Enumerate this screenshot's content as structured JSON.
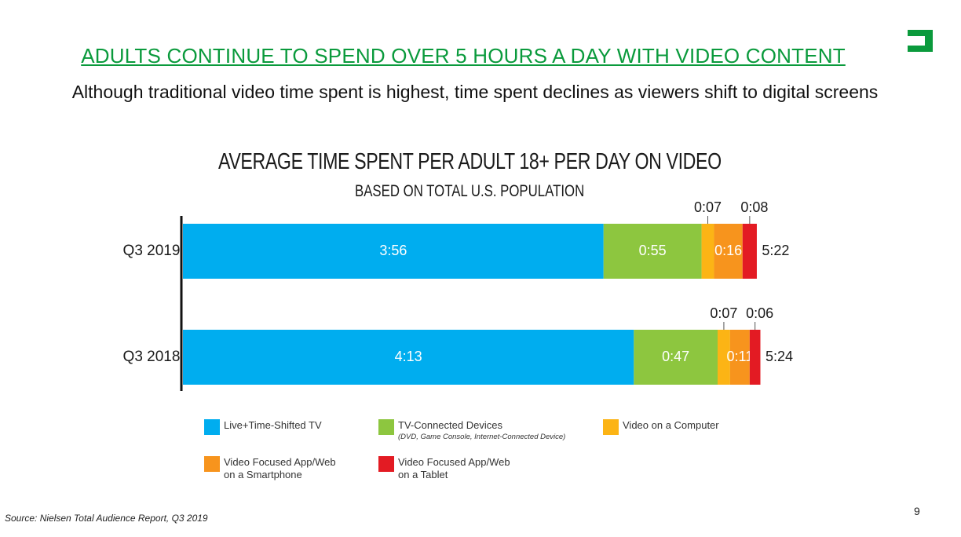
{
  "slide": {
    "title": "ADULTS CONTINUE TO SPEND OVER 5 HOURS A DAY WITH VIDEO CONTENT",
    "subtitle": "Although traditional video time spent is highest, time spent declines as viewers shift to digital screens",
    "source": "Source: Nielsen Total Audience Report, Q3 2019",
    "page_number": "9",
    "brand_color": "#0a9a3c",
    "logo_icon": "bracket-logo-icon"
  },
  "chart_data": {
    "type": "bar",
    "orientation": "horizontal",
    "stacked": true,
    "title": "AVERAGE TIME SPENT PER ADULT 18+ PER DAY ON VIDEO",
    "subtitle": "BASED ON TOTAL U.S. POPULATION",
    "categories": [
      "Q3 2019",
      "Q3 2018"
    ],
    "series": [
      {
        "name": "Live+Time-Shifted TV",
        "color": "#00adef",
        "values": [
          "3:56",
          "4:13"
        ],
        "minutes": [
          236,
          253
        ],
        "label_position": "inside"
      },
      {
        "name": "TV-Connected Devices",
        "note": "(DVD, Game Console, Internet-Connected Device)",
        "color": "#8dc63f",
        "values": [
          "0:55",
          "0:47"
        ],
        "minutes": [
          55,
          47
        ],
        "label_position": "inside"
      },
      {
        "name": "Video on a Computer",
        "color": "#fcb415",
        "values": [
          "0:07",
          "0:07"
        ],
        "minutes": [
          7,
          7
        ],
        "label_position": "above"
      },
      {
        "name": "Video Focused App/Web on a Smartphone",
        "color": "#f7941d",
        "values": [
          "0:16",
          "0:11"
        ],
        "minutes": [
          16,
          11
        ],
        "label_position": "inside"
      },
      {
        "name": "Video Focused App/Web on a Tablet",
        "color": "#e31b23",
        "values": [
          "0:08",
          "0:06"
        ],
        "minutes": [
          8,
          6
        ],
        "label_position": "above"
      }
    ],
    "totals": [
      "5:22",
      "5:24"
    ],
    "legend": {
      "position": "bottom",
      "rows": [
        [
          "Live+Time-Shifted TV",
          "TV-Connected Devices",
          "Video on a Computer"
        ],
        [
          "Video Focused App/Web on a Smartphone",
          "Video Focused App/Web on a Tablet"
        ]
      ]
    },
    "grid": false
  }
}
